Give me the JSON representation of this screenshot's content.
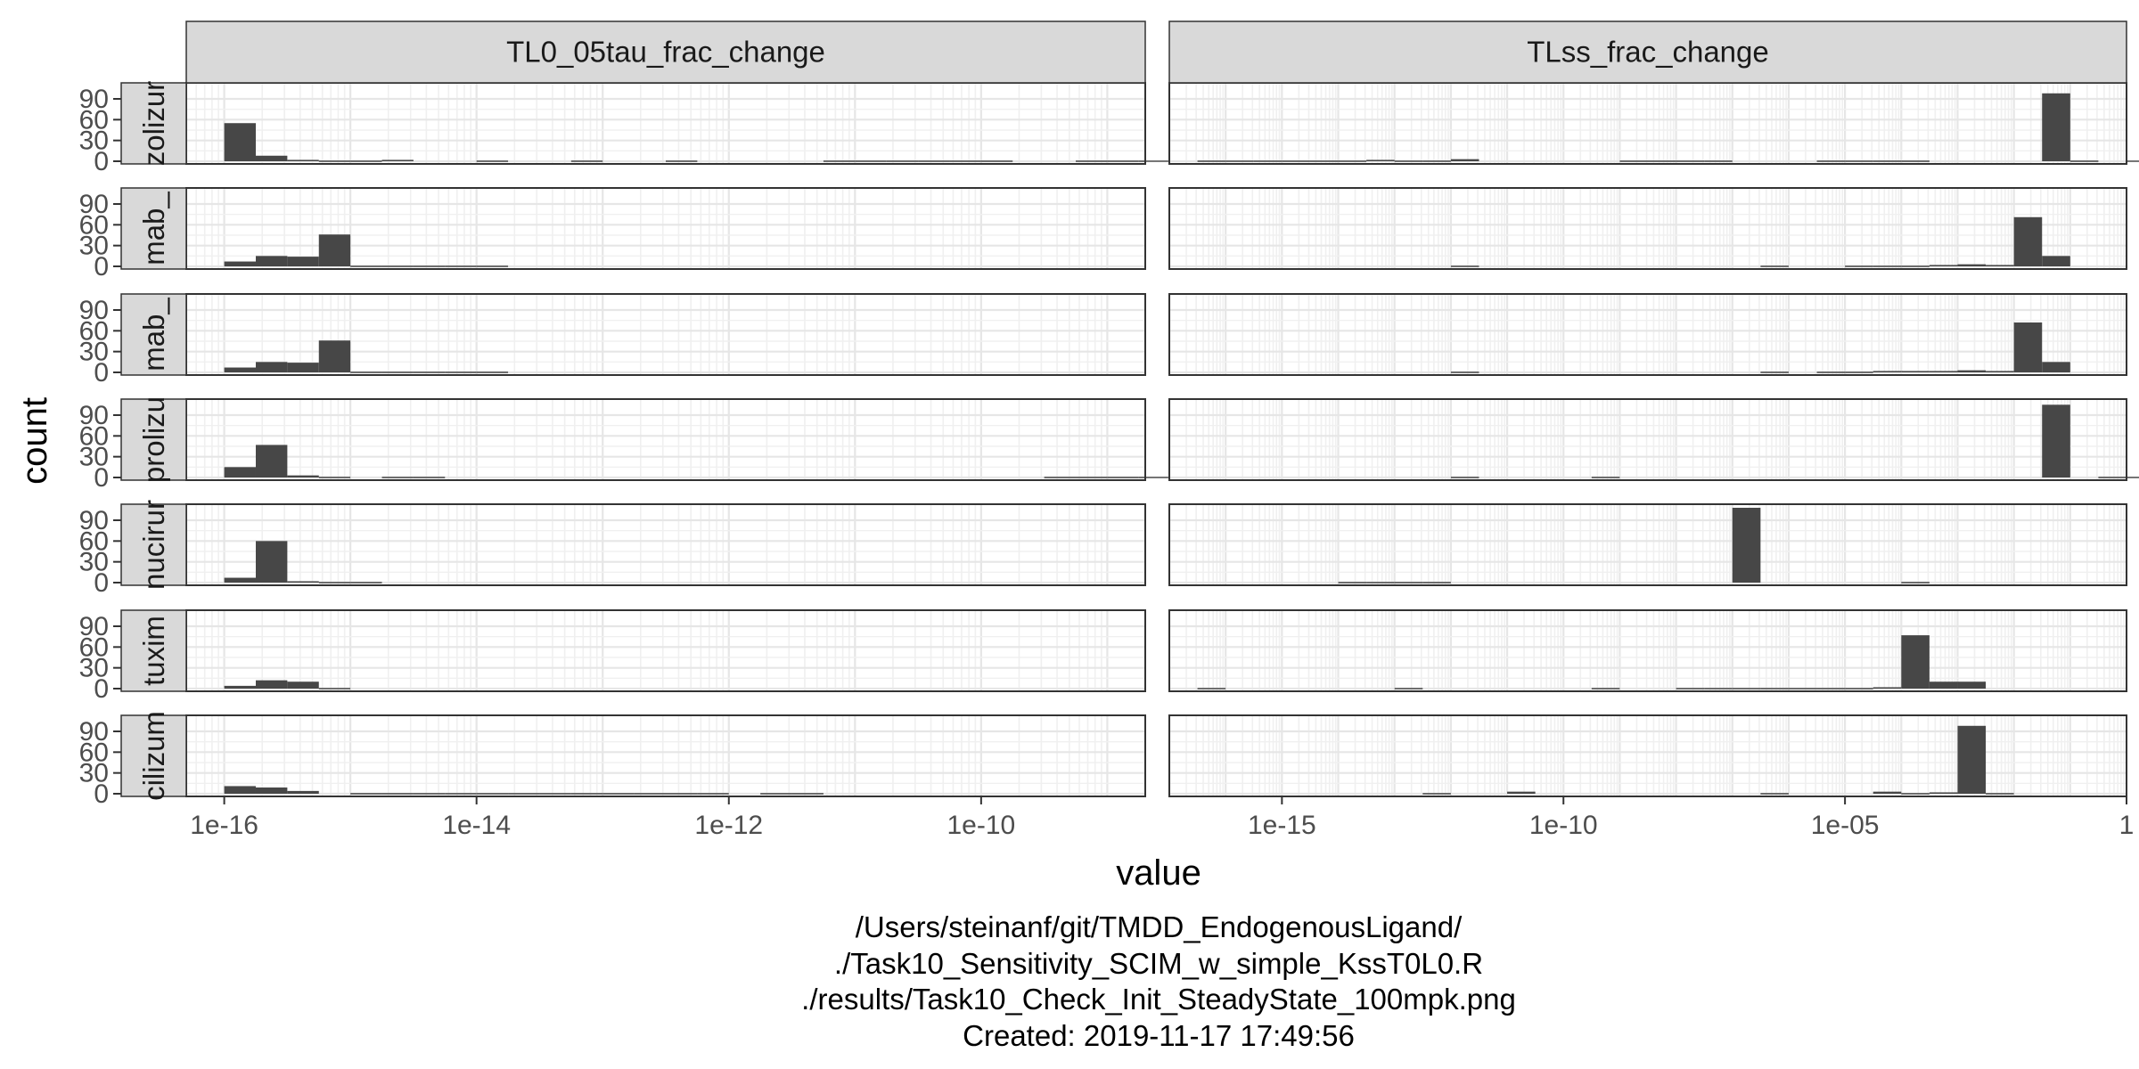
{
  "chart_data": {
    "type": "bar",
    "subtype": "faceted-histogram",
    "xlabel": "value",
    "ylabel": "count",
    "x_scale": "log10",
    "y_ticks": [
      0,
      30,
      60,
      90
    ],
    "ylim": [
      0,
      108
    ],
    "columns": [
      {
        "label": "TL0_05tau_frac_change",
        "xlim": [
          5e-17,
          2e-09
        ],
        "x_ticks": [
          {
            "value": 1e-16,
            "label": "1e-16"
          },
          {
            "value": 1e-14,
            "label": "1e-14"
          },
          {
            "value": 1e-12,
            "label": "1e-12"
          },
          {
            "value": 1e-10,
            "label": "1e-10"
          }
        ]
      },
      {
        "label": "TLss_frac_change",
        "xlim": [
          1e-17,
          1
        ],
        "x_ticks": [
          {
            "value": 1e-15,
            "label": "1e-15"
          },
          {
            "value": 1e-10,
            "label": "1e-10"
          },
          {
            "value": 1e-05,
            "label": "1e-05"
          },
          {
            "value": 1,
            "label": "1"
          }
        ]
      }
    ],
    "rows": [
      "zolizur",
      "mab_",
      "mab_",
      "prolizu",
      "nucirur",
      "tuxim",
      "cilizum"
    ],
    "bins": {
      "col0": {
        "log_start": -16,
        "log_width": 0.25
      },
      "col1": {
        "log_start": -16.5,
        "log_width": 0.5
      }
    },
    "panels": [
      [
        [
          [
            0,
            55
          ],
          [
            1,
            8
          ],
          [
            2,
            2
          ],
          [
            3,
            1
          ],
          [
            4,
            1
          ],
          [
            5,
            2
          ],
          [
            8,
            1
          ],
          [
            11,
            1
          ],
          [
            14,
            1
          ],
          [
            19,
            1
          ],
          [
            20,
            1
          ],
          [
            21,
            1
          ],
          [
            22,
            1
          ],
          [
            23,
            1
          ],
          [
            24,
            1
          ],
          [
            27,
            1
          ],
          [
            28,
            1
          ],
          [
            29,
            1
          ],
          [
            30,
            1
          ],
          [
            31,
            1
          ],
          [
            32,
            1
          ],
          [
            33,
            1
          ],
          [
            34,
            1
          ],
          [
            35,
            1
          ],
          [
            36,
            1
          ],
          [
            37,
            1
          ],
          [
            38,
            1
          ],
          [
            41,
            1
          ],
          [
            42,
            1
          ],
          [
            43,
            1
          ]
        ],
        [
          [
            0,
            7
          ],
          [
            1,
            15
          ],
          [
            2,
            14
          ],
          [
            3,
            46
          ],
          [
            4,
            1
          ],
          [
            5,
            1
          ],
          [
            6,
            1
          ],
          [
            7,
            1
          ],
          [
            8,
            1
          ]
        ],
        [
          [
            0,
            7
          ],
          [
            1,
            15
          ],
          [
            2,
            14
          ],
          [
            3,
            46
          ],
          [
            4,
            1
          ],
          [
            5,
            1
          ],
          [
            6,
            1
          ],
          [
            7,
            1
          ],
          [
            8,
            1
          ]
        ],
        [
          [
            0,
            15
          ],
          [
            1,
            47
          ],
          [
            2,
            3
          ],
          [
            3,
            1
          ],
          [
            5,
            1
          ],
          [
            6,
            1
          ],
          [
            26,
            1
          ],
          [
            27,
            1
          ],
          [
            28,
            1
          ],
          [
            29,
            1
          ],
          [
            30,
            1
          ],
          [
            31,
            1
          ],
          [
            32,
            1
          ],
          [
            35,
            1
          ],
          [
            36,
            1
          ]
        ],
        [
          [
            0,
            7
          ],
          [
            1,
            60
          ],
          [
            2,
            2
          ],
          [
            3,
            1
          ],
          [
            4,
            1
          ],
          [
            58,
            1
          ],
          [
            59,
            1
          ]
        ],
        [
          [
            0,
            4
          ],
          [
            1,
            12
          ],
          [
            2,
            10
          ],
          [
            3,
            1
          ]
        ],
        [
          [
            0,
            11
          ],
          [
            1,
            9
          ],
          [
            2,
            4
          ],
          [
            4,
            1
          ],
          [
            5,
            1
          ],
          [
            6,
            1
          ],
          [
            7,
            1
          ],
          [
            8,
            1
          ],
          [
            9,
            1
          ],
          [
            10,
            1
          ],
          [
            11,
            1
          ],
          [
            12,
            1
          ],
          [
            13,
            1
          ],
          [
            14,
            1
          ],
          [
            15,
            1
          ],
          [
            17,
            1
          ],
          [
            18,
            1
          ]
        ]
      ],
      [
        [
          [
            0,
            1
          ],
          [
            1,
            1
          ],
          [
            2,
            1
          ],
          [
            3,
            1
          ],
          [
            4,
            1
          ],
          [
            5,
            1
          ],
          [
            6,
            2
          ],
          [
            7,
            1
          ],
          [
            8,
            1
          ],
          [
            9,
            3
          ],
          [
            15,
            1
          ],
          [
            16,
            1
          ],
          [
            17,
            1
          ],
          [
            18,
            1
          ],
          [
            22,
            1
          ],
          [
            23,
            1
          ],
          [
            24,
            1
          ],
          [
            25,
            1
          ],
          [
            30,
            98
          ],
          [
            31,
            1
          ],
          [
            33,
            1
          ],
          [
            34,
            1
          ],
          [
            35,
            1
          ],
          [
            36,
            1
          ],
          [
            37,
            1
          ],
          [
            38,
            1
          ],
          [
            39,
            1
          ]
        ],
        [
          [
            9,
            1
          ],
          [
            20,
            1
          ],
          [
            23,
            1
          ],
          [
            24,
            1
          ],
          [
            25,
            1
          ],
          [
            26,
            2
          ],
          [
            27,
            3
          ],
          [
            28,
            2
          ],
          [
            29,
            71
          ],
          [
            30,
            15
          ]
        ],
        [
          [
            9,
            1
          ],
          [
            20,
            1
          ],
          [
            22,
            1
          ],
          [
            23,
            1
          ],
          [
            24,
            2
          ],
          [
            25,
            2
          ],
          [
            26,
            2
          ],
          [
            27,
            3
          ],
          [
            28,
            2
          ],
          [
            29,
            72
          ],
          [
            30,
            15
          ]
        ],
        [
          [
            9,
            1
          ],
          [
            14,
            1
          ],
          [
            30,
            105
          ],
          [
            32,
            1
          ],
          [
            33,
            1
          ],
          [
            34,
            1
          ],
          [
            35,
            1
          ],
          [
            36,
            1
          ]
        ],
        [
          [
            5,
            1
          ],
          [
            6,
            1
          ],
          [
            7,
            1
          ],
          [
            8,
            1
          ],
          [
            19,
            108
          ],
          [
            25,
            1
          ]
        ],
        [
          [
            0,
            1
          ],
          [
            7,
            1
          ],
          [
            14,
            1
          ],
          [
            17,
            1
          ],
          [
            18,
            1
          ],
          [
            19,
            1
          ],
          [
            20,
            1
          ],
          [
            21,
            1
          ],
          [
            22,
            1
          ],
          [
            23,
            1
          ],
          [
            24,
            2
          ],
          [
            25,
            77
          ],
          [
            26,
            10
          ],
          [
            27,
            10
          ]
        ],
        [
          [
            8,
            1
          ],
          [
            11,
            3
          ],
          [
            20,
            1
          ],
          [
            24,
            3
          ],
          [
            25,
            1
          ],
          [
            26,
            2
          ],
          [
            27,
            98
          ],
          [
            28,
            1
          ]
        ]
      ]
    ],
    "caption": [
      "/Users/steinanf/git/TMDD_EndogenousLigand/",
      "./Task10_Sensitivity_SCIM_w_simple_KssT0L0.R",
      "./results/Task10_Check_Init_SteadyState_100mpk.png",
      "Created: 2019-11-17 17:49:56"
    ],
    "colors": {
      "bar": "#474747",
      "strip_fill": "#d9d9d9",
      "panel_border": "#333333",
      "grid_major": "#e6e6e6",
      "grid_minor": "#f0f0f0"
    }
  }
}
